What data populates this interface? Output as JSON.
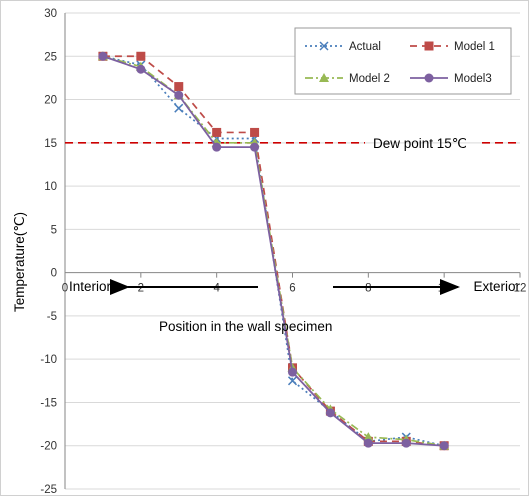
{
  "chart_data": {
    "type": "line",
    "title": "",
    "xlabel": "",
    "ylabel": "Temperature(℃)",
    "xlim": [
      0,
      12
    ],
    "ylim": [
      -25,
      30
    ],
    "xticks": [
      0,
      2,
      4,
      6,
      8,
      10,
      12
    ],
    "yticks": [
      -25,
      -20,
      -15,
      -10,
      -5,
      0,
      5,
      10,
      15,
      20,
      25,
      30
    ],
    "xtick_labels": [
      "0",
      "2",
      "4",
      "6",
      "8",
      "10",
      "12"
    ],
    "ytick_labels": [
      "-25",
      "-20",
      "-15",
      "-10",
      "-5",
      "0",
      "5",
      "10",
      "15",
      "20",
      "25",
      "30"
    ],
    "grid": "horizontal",
    "legend": "top-right",
    "series": [
      {
        "name": "Actual",
        "color": "#4a7ebb",
        "dash": "dotted",
        "marker": "x",
        "x": [
          1,
          2,
          3,
          4,
          5,
          6,
          7,
          8,
          9,
          10
        ],
        "y": [
          25,
          24,
          19,
          15.5,
          15.5,
          -12.5,
          -16,
          -19.5,
          -19,
          -20
        ]
      },
      {
        "name": "Model 1",
        "color": "#be4b48",
        "dash": "dashed",
        "marker": "square",
        "x": [
          1,
          2,
          3,
          4,
          5,
          6,
          7,
          8,
          9,
          10
        ],
        "y": [
          25,
          25,
          21.5,
          16.2,
          16.2,
          -11,
          -16,
          -19.5,
          -19.5,
          -20
        ]
      },
      {
        "name": "Model 2",
        "color": "#98b954",
        "dash": "dashdot",
        "marker": "triangle",
        "x": [
          1,
          2,
          3,
          4,
          5,
          6,
          7,
          8,
          9,
          10
        ],
        "y": [
          25,
          23.8,
          20.5,
          15,
          15,
          -11,
          -15.8,
          -19,
          -19.3,
          -20
        ]
      },
      {
        "name": "Model3",
        "color": "#7d60a0",
        "dash": "solid",
        "marker": "circle",
        "x": [
          1,
          2,
          3,
          4,
          5,
          6,
          7,
          8,
          9,
          10
        ],
        "y": [
          25,
          23.5,
          20.5,
          14.5,
          14.5,
          -11.5,
          -16.2,
          -19.7,
          -19.7,
          -20
        ]
      }
    ],
    "reference_line": {
      "y": 15,
      "label": "Dew point 15℃",
      "color": "#cc0000"
    },
    "annotations": {
      "interior": "Interior",
      "exterior": "Exterior",
      "position": "Position in the wall specimen"
    }
  }
}
